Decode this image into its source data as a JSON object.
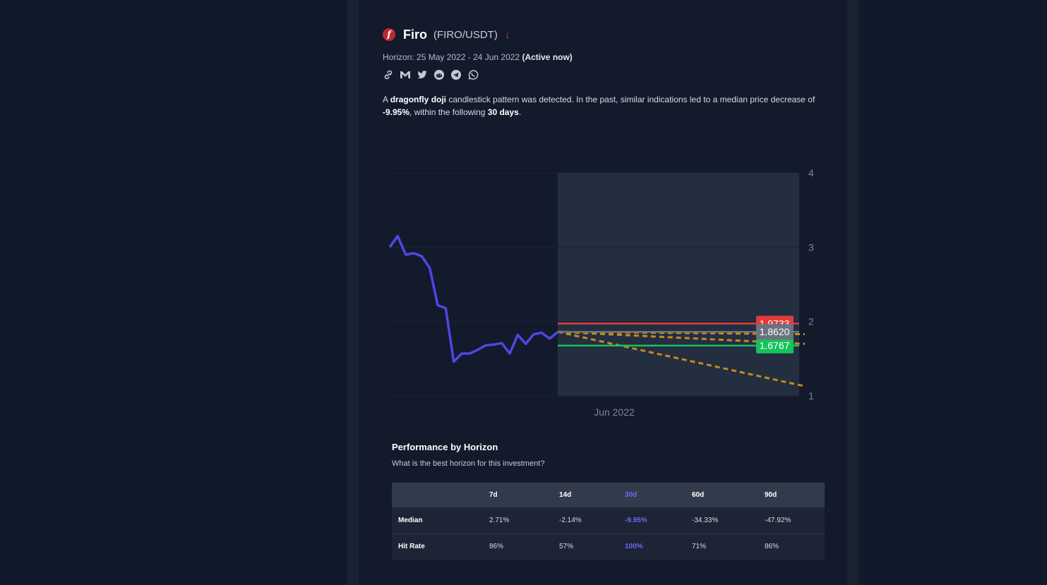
{
  "asset": {
    "name": "Firo",
    "pair": "(FIRO/USDT)",
    "logo_glyph": "f",
    "trend_icon": "arrow-down-icon",
    "trend_glyph": "↓"
  },
  "horizon": {
    "label": "Horizon: 25 May 2022 - 24 Jun 2022",
    "status": "(Active now)"
  },
  "share_icons": [
    "link-icon",
    "gmail-icon",
    "twitter-icon",
    "reddit-icon",
    "telegram-icon",
    "whatsapp-icon"
  ],
  "description": {
    "p1": "A ",
    "pattern": "dragonfly doji",
    "p2": " candlestick pattern was detected. In the past, similar indications led to a median price decrease of ",
    "change": "-9.95%",
    "p3": ", within the following ",
    "days": "30 days",
    "p4": "."
  },
  "chart_data": {
    "type": "line",
    "x_label": "Jun 2022",
    "y_ticks": [
      1,
      2,
      3,
      4
    ],
    "ylim": [
      1,
      4
    ],
    "price_series": [
      3.0,
      3.15,
      2.9,
      2.92,
      2.88,
      2.72,
      2.22,
      2.18,
      1.46,
      1.57,
      1.57,
      1.62,
      1.68,
      1.69,
      1.71,
      1.57,
      1.82,
      1.7,
      1.83,
      1.85,
      1.77,
      1.86
    ],
    "upper_target": {
      "value": 1.9733,
      "label": "1.9733",
      "color": "#e23b3b"
    },
    "current_price": {
      "value": 1.862,
      "label": "1.8620",
      "color": "#6b7280"
    },
    "lower_target": {
      "value": 1.6767,
      "label": "1.6767",
      "color": "#16c25a"
    },
    "projections": [
      {
        "start": 1.862,
        "end": 1.83
      },
      {
        "start": 1.862,
        "end": 1.7
      },
      {
        "start": 1.862,
        "end": 1.13
      }
    ],
    "line_color": "#4f46e5",
    "projection_color": "#c9891a",
    "horizon_shade_color": "#232e40"
  },
  "performance": {
    "title": "Performance by Horizon",
    "subtitle": "What is the best horizon for this investment?",
    "columns": [
      "",
      "7d",
      "14d",
      "30d",
      "60d",
      "90d"
    ],
    "highlight_index": 3,
    "rows": [
      {
        "label": "Median",
        "values": [
          "2.71%",
          "-2.14%",
          "-9.95%",
          "-34.33%",
          "-47.92%"
        ]
      },
      {
        "label": "Hit Rate",
        "values": [
          "86%",
          "57%",
          "100%",
          "71%",
          "86%"
        ]
      }
    ]
  }
}
